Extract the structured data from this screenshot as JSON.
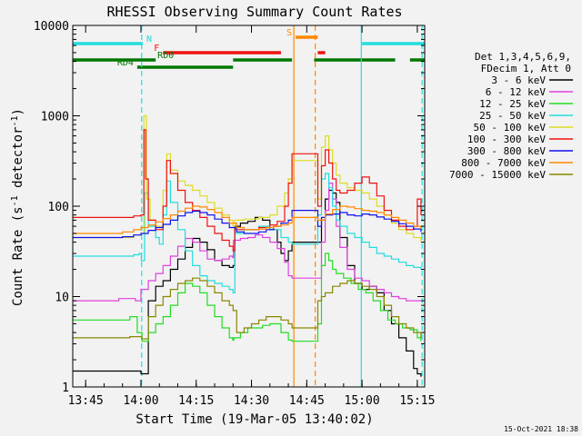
{
  "chart_data": {
    "type": "line",
    "title": "RHESSI Observing Summary Count Rates",
    "xlabel": "Start Time (19-Mar-05 13:40:02)",
    "ylabel_main": "Count Rate (s",
    "ylabel_sup": "-1",
    "ylabel_mid": " detector",
    "ylabel_sup2": "-1",
    "ylabel_end": ")",
    "footer": "15-Oct-2021 18:38",
    "x_unit": "minutes after 13:40",
    "xlim": [
      1.5,
      97
    ],
    "ylim": [
      1,
      10000
    ],
    "yscale": "log",
    "x_ticks": [
      {
        "v": 5,
        "label": "13:45"
      },
      {
        "v": 20,
        "label": "14:00"
      },
      {
        "v": 35,
        "label": "14:15"
      },
      {
        "v": 50,
        "label": "14:30"
      },
      {
        "v": 65,
        "label": "14:45"
      },
      {
        "v": 80,
        "label": "15:00"
      },
      {
        "v": 95,
        "label": "15:15"
      }
    ],
    "y_ticks": [
      {
        "v": 1,
        "label": "1"
      },
      {
        "v": 10,
        "label": "10"
      },
      {
        "v": 100,
        "label": "100"
      },
      {
        "v": 1000,
        "label": "1000"
      },
      {
        "v": 10000,
        "label": "10000"
      }
    ],
    "legend": {
      "header": [
        "Det 1,3,4,5,6,9,",
        "FDecim 1, Att 0"
      ],
      "entries": [
        {
          "label": "3 - 6 keV",
          "color": "#000000"
        },
        {
          "label": "6 - 12 keV",
          "color": "#e040e0"
        },
        {
          "label": "12 - 25 keV",
          "color": "#22dd22"
        },
        {
          "label": "25 - 50 keV",
          "color": "#22dddd"
        },
        {
          "label": "50 - 100 keV",
          "color": "#dddd22"
        },
        {
          "label": "100 - 300 keV",
          "color": "#ee1111"
        },
        {
          "label": "300 - 800 keV",
          "color": "#1111ee"
        },
        {
          "label": "800 - 7000 keV",
          "color": "#ff8800"
        },
        {
          "label": "7000 - 15000 keV",
          "color": "#888800"
        }
      ]
    },
    "flag_bars": [
      {
        "label": "N",
        "color": "#22dddd",
        "segments": [
          [
            1.5,
            20.5
          ],
          [
            80,
            97
          ]
        ]
      },
      {
        "label": "F",
        "color": "#ee1111",
        "segments": [
          [
            26,
            58
          ],
          [
            68,
            70
          ]
        ]
      },
      {
        "label": "S",
        "color": "#ff8800",
        "segments": [
          [
            62,
            68
          ]
        ]
      },
      {
        "label": "RD0",
        "color": "#007700",
        "segments": [
          [
            1.5,
            24
          ],
          [
            45,
            61
          ],
          [
            67,
            89
          ],
          [
            93,
            97
          ]
        ]
      },
      {
        "label": "RD4",
        "color": "#007700",
        "segments": [
          [
            19,
            45
          ]
        ]
      }
    ],
    "vlines": [
      {
        "x": 20.2,
        "color": "#22dddd",
        "dash": true
      },
      {
        "x": 61.5,
        "color": "#ff8800",
        "dash": false
      },
      {
        "x": 67.3,
        "color": "#ff8800",
        "dash": true
      },
      {
        "x": 79.8,
        "color": "#22dddd",
        "dash": false
      },
      {
        "x": 96.3,
        "color": "#22dddd",
        "dash": true
      }
    ],
    "series": [
      {
        "name": "3 - 6 keV",
        "color": "#000000",
        "x": [
          1.5,
          18,
          18.5,
          20,
          22,
          24,
          26,
          28,
          30,
          32,
          34,
          36,
          38,
          40,
          42,
          44,
          45,
          45.5,
          47,
          49,
          51,
          53,
          55,
          57,
          58,
          59,
          60,
          61,
          69,
          70,
          71,
          72,
          73,
          74,
          76,
          78,
          80,
          82,
          84,
          86,
          88,
          90,
          92,
          94,
          95,
          96
        ],
        "y": [
          1.5,
          1.5,
          1.5,
          1.4,
          9,
          13,
          15,
          20,
          26,
          35,
          44,
          40,
          33,
          25,
          22,
          21,
          22,
          60,
          65,
          68,
          75,
          70,
          55,
          40,
          30,
          25,
          32,
          40,
          70,
          120,
          150,
          140,
          110,
          45,
          22,
          14,
          12,
          13,
          11,
          7,
          5,
          3.5,
          2.5,
          1.6,
          1.4,
          1.3
        ]
      },
      {
        "name": "6 - 12 keV",
        "color": "#e040e0",
        "x": [
          1.5,
          8,
          14,
          18,
          18.5,
          20,
          22,
          24,
          26,
          28,
          30,
          32,
          34,
          36,
          38,
          40,
          42,
          44,
          44.9,
          45.1,
          47,
          49,
          51,
          53,
          55,
          57,
          59,
          60,
          61,
          69,
          70,
          71,
          72,
          73,
          74,
          76,
          78,
          80,
          82,
          84,
          86,
          88,
          90,
          92,
          94,
          96
        ],
        "y": [
          9,
          9,
          9.5,
          9.5,
          9,
          12,
          15,
          18,
          22,
          28,
          36,
          44,
          40,
          32,
          26,
          25,
          26,
          28,
          27,
          42,
          44,
          45,
          48,
          45,
          40,
          34,
          24,
          17,
          16,
          40,
          90,
          180,
          120,
          60,
          35,
          20,
          16,
          15,
          13,
          12,
          11,
          10,
          9.5,
          9,
          9,
          9
        ]
      },
      {
        "name": "12 - 25 keV",
        "color": "#22dd22",
        "x": [
          1.5,
          10,
          17,
          18.5,
          19,
          20.3,
          22,
          24,
          26,
          28,
          30,
          32,
          34,
          36,
          38,
          40,
          42,
          44,
          44.9,
          45.2,
          47,
          49,
          51,
          53,
          55,
          57,
          58,
          60,
          61,
          68,
          69,
          70,
          71,
          72,
          73,
          75,
          77,
          79,
          81,
          83,
          85,
          87,
          89,
          91,
          93,
          95,
          96
        ],
        "y": [
          5.5,
          5.5,
          6,
          6,
          4,
          3.2,
          4,
          5,
          6,
          8,
          11,
          14,
          13,
          11,
          8,
          6,
          4.5,
          3.5,
          3.3,
          3.5,
          4,
          4.5,
          4.5,
          4.8,
          5,
          5,
          4,
          3.3,
          3.2,
          5,
          22,
          30,
          25,
          20,
          18,
          16,
          14,
          12,
          11,
          9,
          7,
          5.5,
          5,
          4.5,
          4.3,
          3.5,
          3.2
        ]
      },
      {
        "name": "25 - 50 keV",
        "color": "#22dddd",
        "x": [
          1.5,
          12,
          18,
          19.5,
          20.1,
          21,
          22,
          24,
          25,
          26,
          27,
          28,
          30,
          32,
          34,
          36,
          38,
          40,
          42,
          44,
          45,
          45.5,
          48,
          52,
          55,
          58,
          60,
          61,
          68,
          69,
          70,
          71,
          72,
          73,
          74,
          76,
          78,
          80,
          82,
          84,
          86,
          88,
          90,
          92,
          94,
          96
        ],
        "y": [
          28,
          28,
          29,
          30,
          25,
          140,
          60,
          45,
          38,
          80,
          190,
          110,
          55,
          32,
          22,
          17,
          15,
          14,
          13,
          12,
          11,
          50,
          55,
          60,
          55,
          45,
          40,
          38,
          80,
          200,
          230,
          160,
          100,
          70,
          60,
          50,
          45,
          40,
          35,
          30,
          28,
          26,
          24,
          22,
          21,
          20
        ]
      },
      {
        "name": "50 - 100 keV",
        "color": "#dddd22",
        "x": [
          1.5,
          12,
          18,
          20,
          20.8,
          21.5,
          22.5,
          24,
          26,
          27,
          28,
          30,
          32,
          34,
          36,
          38,
          40,
          42,
          44,
          45,
          45.5,
          48,
          52,
          55,
          57,
          59,
          60,
          61,
          68,
          69,
          70,
          71,
          72,
          73,
          74,
          76,
          78,
          80,
          82,
          84,
          86,
          88,
          90,
          92,
          94,
          96
        ],
        "y": [
          45,
          45,
          48,
          50,
          1000,
          120,
          70,
          60,
          150,
          380,
          250,
          190,
          170,
          150,
          130,
          110,
          95,
          80,
          70,
          60,
          70,
          72,
          75,
          80,
          100,
          140,
          200,
          320,
          120,
          450,
          600,
          420,
          300,
          220,
          180,
          160,
          150,
          140,
          120,
          100,
          80,
          65,
          55,
          50,
          45,
          40
        ]
      },
      {
        "name": "100 - 300 keV",
        "color": "#ee1111",
        "x": [
          1.5,
          12,
          18,
          20,
          20.8,
          21.3,
          22,
          24,
          26,
          27,
          28,
          30,
          32,
          34,
          36,
          38,
          40,
          42,
          44,
          45,
          45.5,
          48,
          52,
          55,
          57,
          59,
          60,
          61,
          68,
          69,
          70,
          71,
          72,
          73,
          74,
          76,
          78,
          80,
          82,
          84,
          86,
          88,
          90,
          92,
          94,
          95,
          96
        ],
        "y": [
          75,
          75,
          78,
          80,
          700,
          200,
          70,
          55,
          100,
          320,
          230,
          150,
          110,
          90,
          75,
          60,
          50,
          42,
          36,
          32,
          55,
          55,
          58,
          62,
          68,
          100,
          180,
          380,
          100,
          280,
          420,
          300,
          200,
          150,
          140,
          150,
          180,
          210,
          180,
          130,
          90,
          70,
          60,
          55,
          60,
          120,
          80
        ]
      },
      {
        "name": "300 - 800 keV",
        "color": "#1111ee",
        "x": [
          1.5,
          10,
          15,
          18,
          20,
          22,
          24,
          26,
          28,
          30,
          32,
          34,
          36,
          38,
          40,
          42,
          44,
          46,
          48,
          50,
          52,
          54,
          56,
          58,
          60,
          61,
          68,
          69,
          70,
          72,
          74,
          76,
          78,
          80,
          82,
          84,
          86,
          88,
          90,
          92,
          94,
          96
        ],
        "y": [
          45,
          45,
          46,
          48,
          50,
          54,
          58,
          63,
          70,
          78,
          85,
          88,
          85,
          80,
          72,
          65,
          58,
          52,
          50,
          50,
          52,
          55,
          60,
          65,
          70,
          90,
          60,
          75,
          80,
          82,
          85,
          80,
          78,
          82,
          80,
          76,
          72,
          68,
          64,
          60,
          56,
          52
        ]
      },
      {
        "name": "800 - 7000 keV",
        "color": "#ff8800",
        "x": [
          1.5,
          10,
          15,
          18,
          20,
          22,
          24,
          26,
          28,
          30,
          32,
          34,
          36,
          38,
          40,
          42,
          44,
          46,
          48,
          50,
          52,
          54,
          56,
          58,
          60,
          61,
          68,
          70,
          72,
          74,
          76,
          78,
          80,
          82,
          84,
          86,
          88,
          90,
          92,
          94,
          96
        ],
        "y": [
          50,
          50,
          52,
          55,
          58,
          62,
          67,
          73,
          80,
          88,
          95,
          100,
          98,
          92,
          85,
          75,
          65,
          58,
          55,
          55,
          56,
          58,
          60,
          62,
          65,
          75,
          70,
          82,
          92,
          100,
          98,
          94,
          90,
          88,
          85,
          80,
          75,
          70,
          65,
          60,
          56
        ]
      },
      {
        "name": "7000 - 15000 keV",
        "color": "#888800",
        "x": [
          1.5,
          10,
          17,
          19,
          20.2,
          22,
          24,
          26,
          28,
          30,
          32,
          34,
          36,
          38,
          40,
          42,
          44,
          45,
          46,
          48,
          50,
          52,
          54,
          56,
          58,
          60,
          61,
          68,
          69,
          70,
          72,
          74,
          76,
          78,
          80,
          82,
          84,
          86,
          88,
          90,
          92,
          94,
          96
        ],
        "y": [
          3.5,
          3.5,
          3.6,
          3.6,
          3.4,
          6,
          8,
          10,
          12,
          14,
          15,
          16,
          15,
          13,
          11,
          9,
          8,
          7,
          4,
          4.5,
          5,
          5.5,
          6,
          6,
          5.5,
          5,
          4.5,
          9,
          10,
          11,
          13,
          14,
          15,
          14,
          13,
          12,
          10,
          8,
          6,
          5,
          4.5,
          4,
          3.5
        ]
      }
    ]
  }
}
